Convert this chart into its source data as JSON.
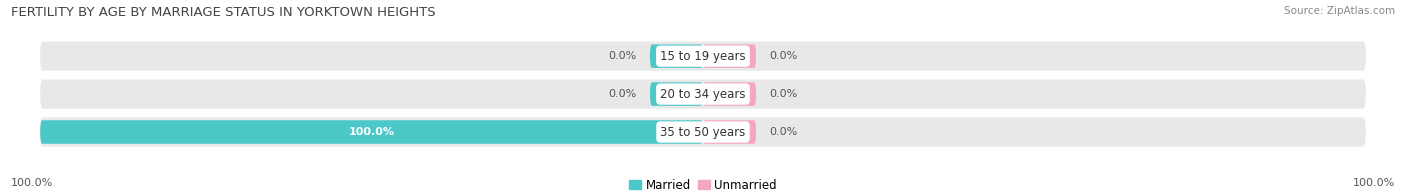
{
  "title": "FERTILITY BY AGE BY MARRIAGE STATUS IN YORKTOWN HEIGHTS",
  "source": "Source: ZipAtlas.com",
  "categories": [
    "15 to 19 years",
    "20 to 34 years",
    "35 to 50 years"
  ],
  "married_values": [
    0.0,
    0.0,
    100.0
  ],
  "unmarried_values": [
    0.0,
    0.0,
    0.0
  ],
  "married_color": "#4dc8c8",
  "unmarried_color": "#f4a8bf",
  "bg_color": "#ffffff",
  "bar_bg_left_color": "#e8e8e8",
  "bar_bg_right_color": "#e8e8e8",
  "bar_height": 0.62,
  "title_fontsize": 9.5,
  "label_fontsize": 8.5,
  "value_fontsize": 8,
  "source_fontsize": 7.5,
  "legend_fontsize": 8.5,
  "x_left_label": "100.0%",
  "x_right_label": "100.0%",
  "center_label_color": "#333333",
  "value_label_color": "#555555"
}
